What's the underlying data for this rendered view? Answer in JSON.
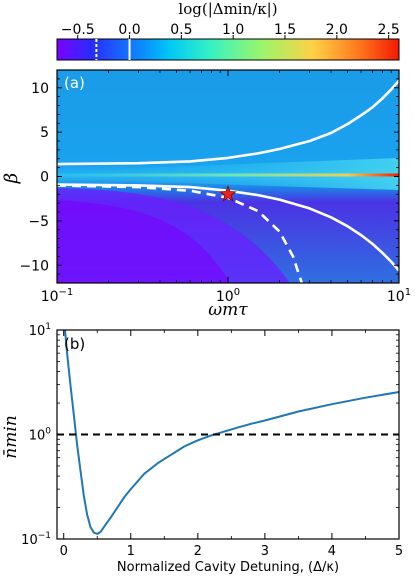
{
  "chart_data": [
    {
      "panel": "(a)",
      "type": "heatmap",
      "colorbar": {
        "label": "log(|Δmin/κ|)",
        "ticks": [
          "−0.5",
          "0.0",
          "0.5",
          "1.0",
          "1.5",
          "2.0",
          "2.5"
        ],
        "tick_values": [
          -0.5,
          0.0,
          0.5,
          1.0,
          1.5,
          2.0,
          2.5
        ],
        "range": [
          -0.7,
          2.6
        ],
        "colormap": "jet",
        "marker_solid": 0.0,
        "marker_dashed": -0.32
      },
      "xlabel": "ωmτ",
      "ylabel": "β",
      "xscale": "log",
      "xlim": [
        0.1,
        10
      ],
      "ylim": [
        -12,
        12
      ],
      "xticks": [
        {
          "value": 0.1,
          "base": "10",
          "exp": "−1"
        },
        {
          "value": 1,
          "base": "10",
          "exp": "0"
        },
        {
          "value": 10,
          "base": "10",
          "exp": "1"
        }
      ],
      "yticks": [
        -10,
        -5,
        0,
        5,
        10
      ],
      "ytick_labels": [
        "−10",
        "−5",
        "0",
        "5",
        "10"
      ],
      "contours": [
        {
          "style": "solid",
          "color": "#ffffff",
          "x": [
            0.1,
            0.3,
            0.6,
            1.0,
            1.5,
            2.0,
            3.0,
            4.0,
            5.0,
            6.0,
            7.0,
            8.0,
            9.0,
            10.0
          ],
          "y": [
            1.4,
            1.5,
            1.7,
            2.1,
            2.6,
            3.1,
            4.0,
            4.9,
            5.9,
            6.9,
            7.8,
            8.8,
            9.8,
            10.8
          ]
        },
        {
          "style": "solid",
          "color": "#ffffff",
          "x": [
            0.1,
            0.3,
            0.6,
            1.0,
            1.5,
            2.0,
            3.0,
            4.0,
            5.0,
            6.0,
            7.0,
            8.0,
            9.0,
            10.0
          ],
          "y": [
            -0.9,
            -1.0,
            -1.2,
            -1.6,
            -2.1,
            -2.6,
            -3.6,
            -4.6,
            -5.6,
            -6.6,
            -7.6,
            -8.6,
            -9.6,
            -10.6
          ]
        },
        {
          "style": "dashed",
          "color": "#ffffff",
          "x": [
            0.1,
            0.3,
            0.6,
            1.0,
            1.5,
            2.0,
            2.4,
            2.7
          ],
          "y": [
            -1.0,
            -1.2,
            -1.6,
            -2.4,
            -3.9,
            -6.2,
            -9.0,
            -12.0
          ]
        }
      ],
      "star": {
        "x": 1.0,
        "y": -2.0,
        "color": "#e8231f"
      }
    },
    {
      "panel": "(b)",
      "type": "line",
      "xlabel": "Normalized Cavity Detuning, (Δ/κ)",
      "ylabel": "n̄min",
      "yscale": "log",
      "xlim": [
        -0.1,
        5.0
      ],
      "ylim": [
        0.1,
        10
      ],
      "xticks": [
        0,
        1,
        2,
        3,
        4,
        5
      ],
      "yticks": [
        {
          "value": 0.1,
          "base": "10",
          "exp": "−1"
        },
        {
          "value": 1,
          "base": "10",
          "exp": "0"
        },
        {
          "value": 10,
          "base": "10",
          "exp": "1"
        }
      ],
      "series": [
        {
          "color": "#1f77b4",
          "x": [
            0.02,
            0.05,
            0.1,
            0.15,
            0.2,
            0.25,
            0.3,
            0.35,
            0.4,
            0.45,
            0.5,
            0.55,
            0.6,
            0.7,
            0.8,
            0.9,
            1.0,
            1.2,
            1.4,
            1.6,
            1.8,
            2.0,
            2.2,
            2.4,
            2.6,
            2.8,
            3.0,
            3.5,
            4.0,
            4.5,
            5.0
          ],
          "y": [
            10.0,
            6.0,
            3.0,
            1.55,
            0.8,
            0.45,
            0.26,
            0.17,
            0.13,
            0.115,
            0.112,
            0.117,
            0.13,
            0.16,
            0.2,
            0.25,
            0.3,
            0.42,
            0.53,
            0.64,
            0.77,
            0.88,
            0.98,
            1.07,
            1.17,
            1.27,
            1.36,
            1.66,
            1.95,
            2.25,
            2.55
          ]
        },
        {
          "color": "#000000",
          "style": "dashed",
          "x": [
            -0.1,
            5.0
          ],
          "y": [
            1.0,
            1.0
          ]
        }
      ]
    }
  ]
}
